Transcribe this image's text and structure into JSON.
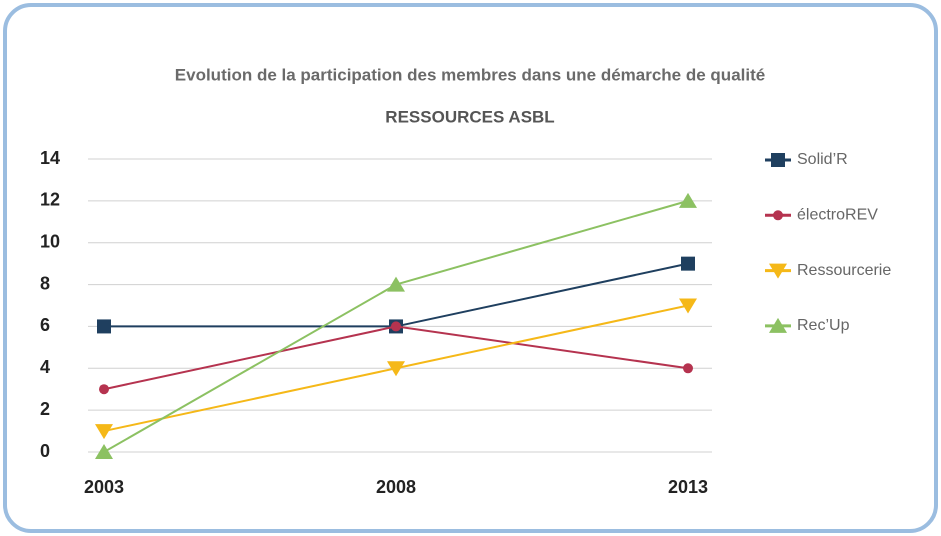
{
  "chart_data": {
    "type": "line",
    "title": "Evolution de la participation des membres dans une démarche de qualité",
    "subtitle": "RESSOURCES ASBL",
    "categories": [
      "2003",
      "2008",
      "2013"
    ],
    "series": [
      {
        "name": "Solid’R",
        "color": "#1f3f5f",
        "marker": "square",
        "values": [
          6,
          6,
          9
        ]
      },
      {
        "name": "électroREV",
        "color": "#b5334f",
        "marker": "circle",
        "values": [
          3,
          6,
          4
        ]
      },
      {
        "name": "Ressourcerie",
        "color": "#f5b818",
        "marker": "triangle-down",
        "values": [
          1,
          4,
          7
        ]
      },
      {
        "name": "Rec’Up",
        "color": "#8cc162",
        "marker": "triangle-up",
        "values": [
          0,
          8,
          12
        ]
      }
    ],
    "ylim": [
      0,
      14
    ],
    "yticks": [
      0,
      2,
      4,
      6,
      8,
      10,
      12,
      14
    ],
    "grid": true,
    "legend": "right"
  }
}
